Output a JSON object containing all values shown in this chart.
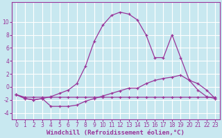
{
  "bg_color": "#c8e8f0",
  "line_color": "#993399",
  "grid_color": "#ffffff",
  "xlabel": "Windchill (Refroidissement éolien,°C)",
  "xlabel_fontsize": 6.5,
  "tick_fontsize": 5.5,
  "ylim": [
    -5,
    13
  ],
  "xlim": [
    -0.5,
    23.5
  ],
  "yticks": [
    -4,
    -2,
    0,
    2,
    4,
    6,
    8,
    10
  ],
  "xticks": [
    0,
    1,
    2,
    3,
    4,
    5,
    6,
    7,
    8,
    9,
    10,
    11,
    12,
    13,
    14,
    15,
    16,
    17,
    18,
    19,
    20,
    21,
    22,
    23
  ],
  "line1_x": [
    0,
    1,
    2,
    3,
    4,
    5,
    6,
    7,
    8,
    9,
    10,
    11,
    12,
    13,
    14,
    15,
    16,
    17,
    18,
    19,
    20,
    21,
    22,
    23
  ],
  "line1_y": [
    -1.2,
    -1.6,
    -1.6,
    -1.6,
    -1.6,
    -1.6,
    -1.6,
    -1.6,
    -1.6,
    -1.6,
    -1.6,
    -1.6,
    -1.6,
    -1.6,
    -1.6,
    -1.6,
    -1.6,
    -1.6,
    -1.6,
    -1.6,
    -1.6,
    -1.6,
    -1.6,
    -1.6
  ],
  "line2_x": [
    0,
    1,
    2,
    3,
    4,
    5,
    6,
    7,
    8,
    9,
    10,
    11,
    12,
    13,
    14,
    15,
    16,
    17,
    18,
    19,
    20,
    21,
    22,
    23
  ],
  "line2_y": [
    -1.2,
    -1.8,
    -2.0,
    -1.8,
    -3.0,
    -3.0,
    -3.0,
    -2.8,
    -2.2,
    -1.8,
    -1.4,
    -1.0,
    -0.6,
    -0.2,
    -0.2,
    0.5,
    1.0,
    1.3,
    1.5,
    1.8,
    1.0,
    0.5,
    -0.5,
    -1.8
  ],
  "line3_x": [
    0,
    1,
    2,
    3,
    4,
    5,
    6,
    7,
    8,
    9,
    10,
    11,
    12,
    13,
    14,
    15,
    16,
    17,
    18,
    19,
    20,
    21,
    22,
    23
  ],
  "line3_y": [
    -1.2,
    -1.8,
    -2.0,
    -1.8,
    -1.5,
    -1.0,
    -0.5,
    0.5,
    3.2,
    7.0,
    9.5,
    11.0,
    11.5,
    11.2,
    10.3,
    8.0,
    4.5,
    4.5,
    8.0,
    4.5,
    1.0,
    -0.5,
    -1.5,
    -1.8
  ]
}
